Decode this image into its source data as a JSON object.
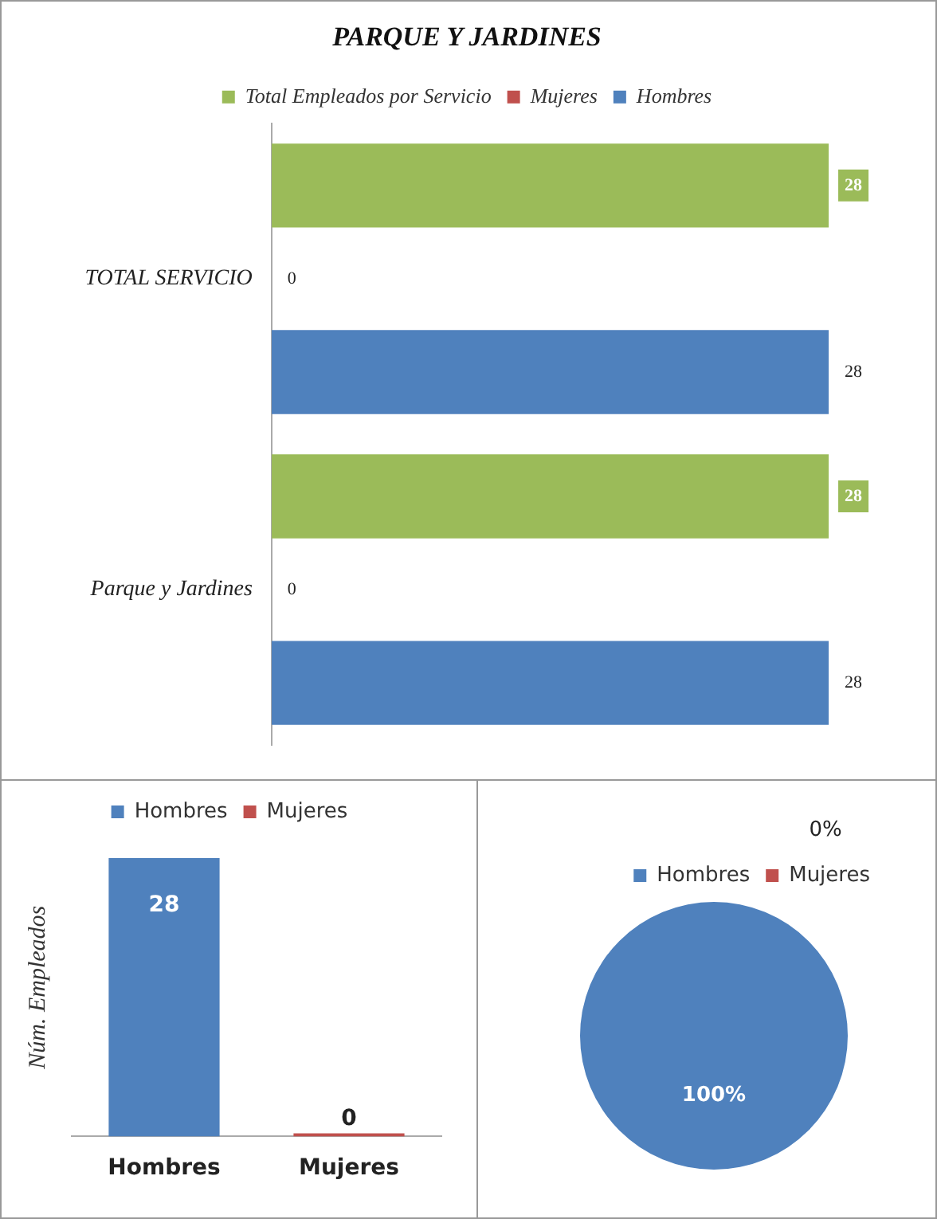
{
  "chart_data": [
    {
      "type": "bar",
      "orientation": "horizontal",
      "title": "PARQUE Y JARDINES",
      "categories": [
        "TOTAL SERVICIO",
        "Parque y Jardines"
      ],
      "series": [
        {
          "name": "Total Empleados por Servicio",
          "color": "#9bbb59",
          "values": [
            28,
            28
          ]
        },
        {
          "name": "Mujeres",
          "color": "#c0504d",
          "values": [
            0,
            0
          ]
        },
        {
          "name": "Hombres",
          "color": "#4f81bd",
          "values": [
            28,
            28
          ]
        }
      ],
      "data_labels": true,
      "legend": "top",
      "grid": false,
      "tick_labels": "y"
    },
    {
      "type": "bar",
      "ylabel": "Núm. Empleados",
      "categories": [
        "Hombres",
        "Mujeres"
      ],
      "series": [
        {
          "name": "Hombres",
          "color": "#4f81bd",
          "values": [
            28,
            null
          ]
        },
        {
          "name": "Mujeres",
          "color": "#c0504d",
          "values": [
            null,
            0
          ]
        }
      ],
      "data_labels": true,
      "legend": "top",
      "grid": false,
      "tick_labels": "x"
    },
    {
      "type": "pie",
      "categories": [
        "Hombres",
        "Mujeres"
      ],
      "values": [
        100,
        0
      ],
      "colors": [
        "#4f81bd",
        "#c0504d"
      ],
      "value_labels": [
        "100%",
        "0%"
      ],
      "legend": "top right"
    }
  ]
}
